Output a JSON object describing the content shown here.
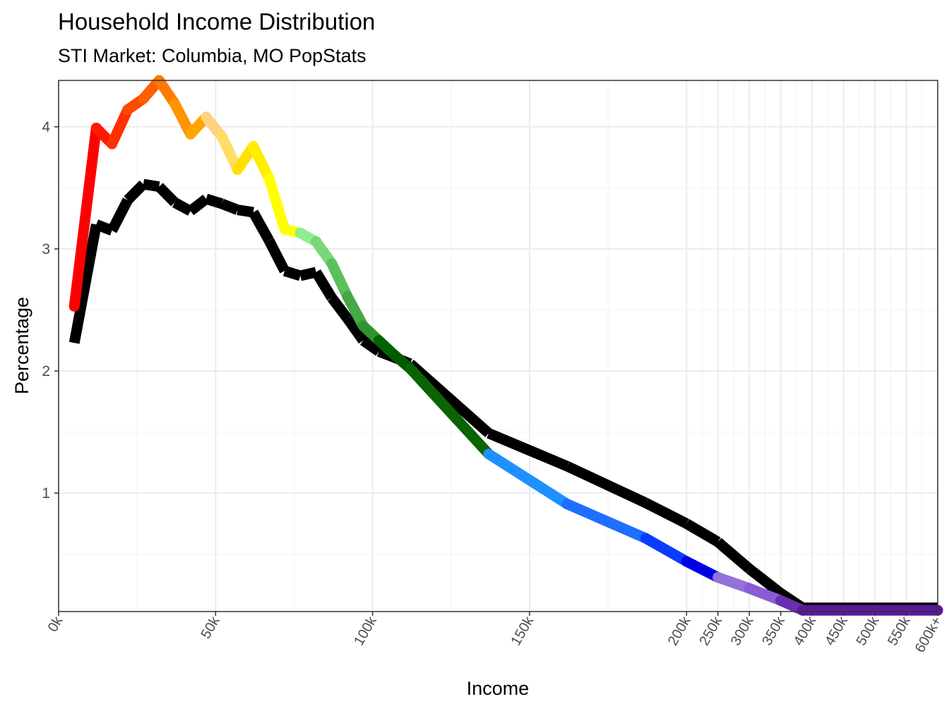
{
  "chart_data": {
    "type": "line",
    "title": "Household Income Distribution",
    "subtitle": "STI Market: Columbia, MO PopStats",
    "xlabel": "Income",
    "ylabel": "Percentage",
    "x_tick_labels": [
      "0k",
      "50k",
      "100k",
      "150k",
      "200k",
      "250k",
      "300k",
      "350k",
      "400k",
      "450k",
      "500k",
      "550k",
      "600k+"
    ],
    "x_tick_positions": [
      0,
      50,
      100,
      150,
      200,
      210,
      220,
      230,
      240,
      250,
      260,
      270,
      280
    ],
    "y_ticks": [
      1,
      2,
      3,
      4
    ],
    "ylim": [
      0.03,
      4.38
    ],
    "xlim": [
      0,
      280
    ],
    "grid": true,
    "series": [
      {
        "color": "#000000",
        "x": [
          5,
          12,
          17,
          22,
          27,
          32,
          37,
          42,
          47,
          52,
          57,
          62,
          67,
          72,
          77,
          82,
          87,
          92,
          97,
          102,
          107,
          112,
          137,
          162,
          187,
          200,
          210,
          220,
          230,
          237,
          280
        ],
        "y": [
          2.23,
          3.2,
          3.15,
          3.4,
          3.53,
          3.51,
          3.38,
          3.31,
          3.41,
          3.37,
          3.32,
          3.3,
          3.07,
          2.82,
          2.78,
          2.81,
          2.6,
          2.43,
          2.25,
          2.16,
          2.11,
          2.06,
          1.49,
          1.22,
          0.92,
          0.75,
          0.6,
          0.38,
          0.18,
          0.06,
          0.06
        ]
      },
      {
        "gradient_colors": [
          "#ff0000",
          "#ff1a00",
          "#ff3000",
          "#ff4800",
          "#ff6000",
          "#ff7a00",
          "#ff9300",
          "#ffa500",
          "#ffd27f",
          "#ffdd66",
          "#ffe000",
          "#ffee00",
          "#ffff00",
          "#ffff00",
          "#90ee90",
          "#78d878",
          "#5cbf5c",
          "#45a845",
          "#2f942f",
          "#006400",
          "#005a00",
          "#0a6400",
          "#1e90ff",
          "#1e6eff",
          "#0a3cff",
          "#0000e6",
          "#9370db",
          "#8a5cd6",
          "#6a2fb0",
          "#5a189a"
        ],
        "x": [
          5,
          12,
          17,
          22,
          27,
          32,
          37,
          42,
          47,
          52,
          57,
          62,
          67,
          72,
          77,
          82,
          87,
          92,
          97,
          102,
          107,
          112,
          137,
          162,
          187,
          200,
          210,
          220,
          230,
          237,
          280
        ],
        "y": [
          2.53,
          3.99,
          3.86,
          4.14,
          4.23,
          4.38,
          4.19,
          3.94,
          4.08,
          3.92,
          3.65,
          3.84,
          3.58,
          3.16,
          3.13,
          3.06,
          2.88,
          2.61,
          2.37,
          2.25,
          2.13,
          2.02,
          1.32,
          0.91,
          0.63,
          0.44,
          0.31,
          0.22,
          0.12,
          0.04,
          0.04
        ]
      }
    ]
  }
}
